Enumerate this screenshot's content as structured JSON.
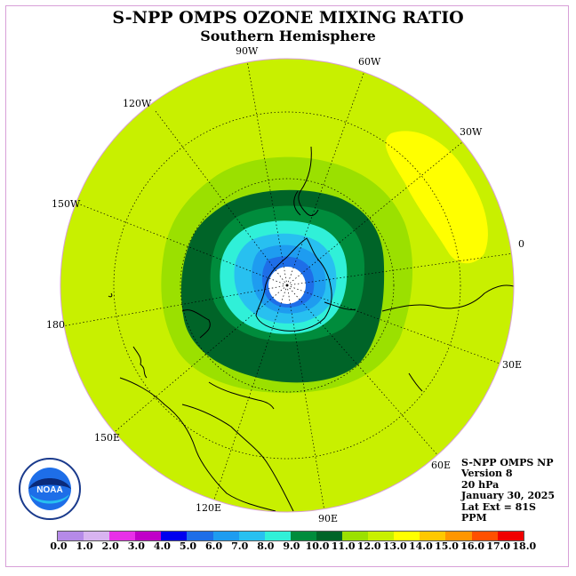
{
  "title": "S-NPP OMPS OZONE MIXING RATIO",
  "subtitle": "Southern Hemisphere",
  "longitude_labels": {
    "w90": "90W",
    "w60": "60W",
    "w120": "120W",
    "w30": "30W",
    "w150": "150W",
    "zero": "0",
    "deg180": "180",
    "e30": "30E",
    "e150": "150E",
    "e60": "60E",
    "e120": "120E",
    "e90": "90E"
  },
  "info": {
    "instrument": "S-NPP OMPS NP",
    "version": "Version 8",
    "level": "20 hPa",
    "date": "January 30, 2025",
    "lat_ext": "Lat Ext = 81S",
    "units": "PPM"
  },
  "logo_text": "NOAA",
  "colorbar": {
    "labels": [
      "0.0",
      "1.0",
      "2.0",
      "3.0",
      "4.0",
      "5.0",
      "6.0",
      "7.0",
      "8.0",
      "9.0",
      "10.0",
      "11.0",
      "12.0",
      "13.0",
      "14.0",
      "15.0",
      "16.0",
      "17.0",
      "18.0"
    ],
    "colors": [
      "#b58ae8",
      "#d8b4f0",
      "#e830e8",
      "#c000c8",
      "#0000ee",
      "#1e6ee8",
      "#1e9cf0",
      "#28c0f0",
      "#30f0d8",
      "#008c3c",
      "#006428",
      "#9be000",
      "#c8f000",
      "#ffff00",
      "#ffc800",
      "#ff9600",
      "#ff5000",
      "#f00000",
      "#8c5a3c"
    ]
  },
  "colors": {
    "background_field": "#c8f000",
    "high_ozone": "#ffff00",
    "ring_light": "#9be000",
    "ring_green": "#008c3c",
    "ring_dark": "#006428",
    "core_cyan": "#30f0d8",
    "core_blue1": "#28c0f0",
    "core_blue2": "#1e9cf0",
    "core_blue3": "#1e6ee8"
  }
}
